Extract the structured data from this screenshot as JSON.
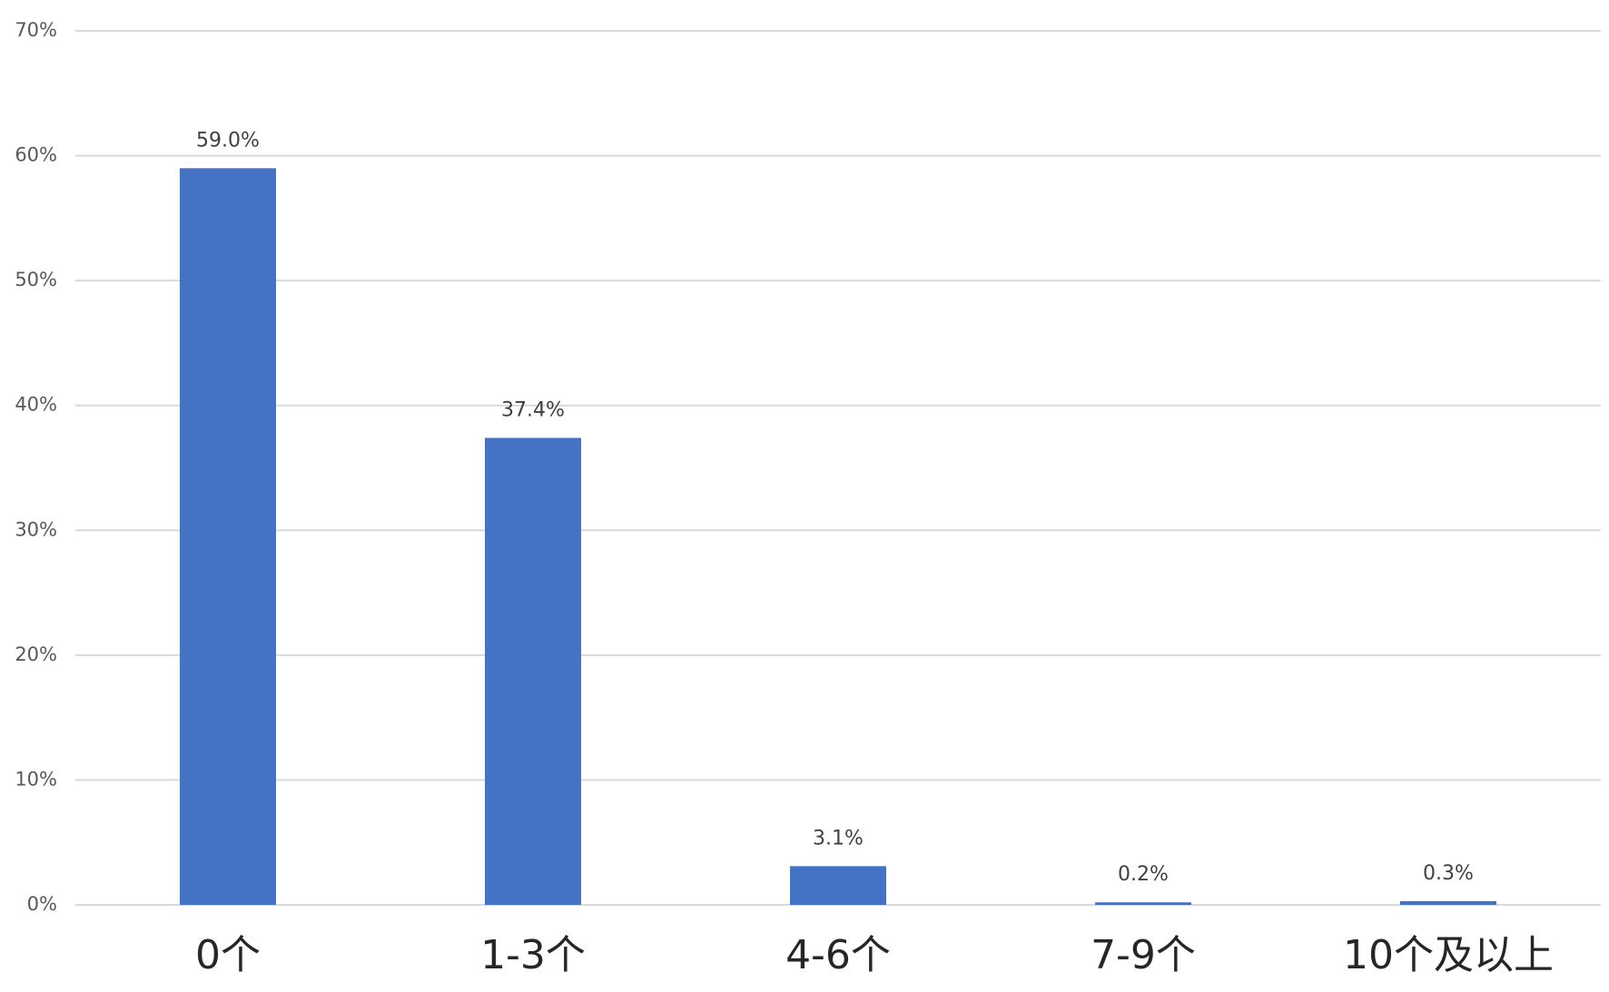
{
  "chart_data": {
    "type": "bar",
    "categories": [
      "0个",
      "1-3个",
      "4-6个",
      "7-9个",
      "10个及以上"
    ],
    "values": [
      59.0,
      37.4,
      3.1,
      0.2,
      0.3
    ],
    "value_labels": [
      "59.0%",
      "37.4%",
      "3.1%",
      "0.2%",
      "0.3%"
    ],
    "color": "#4472c4",
    "ylim": [
      0,
      70
    ],
    "yticks": [
      {
        "value": 0,
        "label": "0%"
      },
      {
        "value": 10,
        "label": "10%"
      },
      {
        "value": 20,
        "label": "20%"
      },
      {
        "value": 30,
        "label": "30%"
      },
      {
        "value": 40,
        "label": "40%"
      },
      {
        "value": 50,
        "label": "50%"
      },
      {
        "value": 60,
        "label": "60%"
      },
      {
        "value": 70,
        "label": "70%"
      }
    ],
    "grid": true
  }
}
